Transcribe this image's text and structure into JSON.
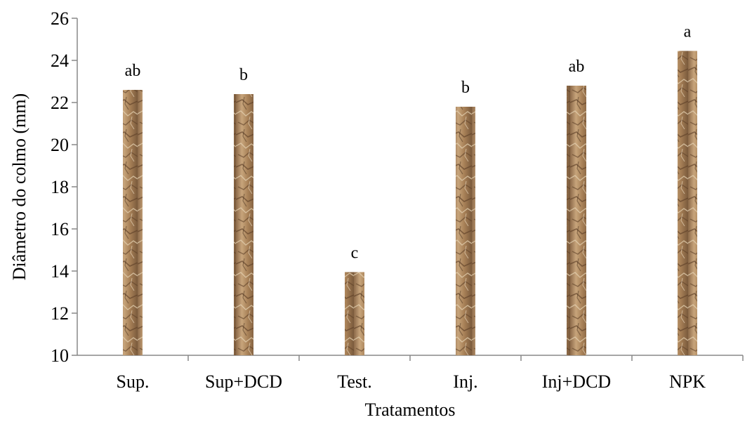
{
  "chart_data": {
    "type": "bar",
    "title": "",
    "xlabel": "Tratamentos",
    "ylabel": "Diâmetro do colmo (mm)",
    "ylim": [
      10,
      26
    ],
    "yticks": [
      10,
      12,
      14,
      16,
      18,
      20,
      22,
      24,
      26
    ],
    "categories": [
      "Sup.",
      "Sup+DCD",
      "Test.",
      "Inj.",
      "Inj+DCD",
      "NPK"
    ],
    "values": [
      22.6,
      22.4,
      13.95,
      21.8,
      22.8,
      24.45
    ],
    "annotations": [
      "ab",
      "b",
      "c",
      "b",
      "ab",
      "a"
    ],
    "grid": false,
    "legend": "none",
    "bar_color": "#b08a62",
    "bar_dark_color": "#6e4d30",
    "bar_light_color": "#e3cfae"
  }
}
